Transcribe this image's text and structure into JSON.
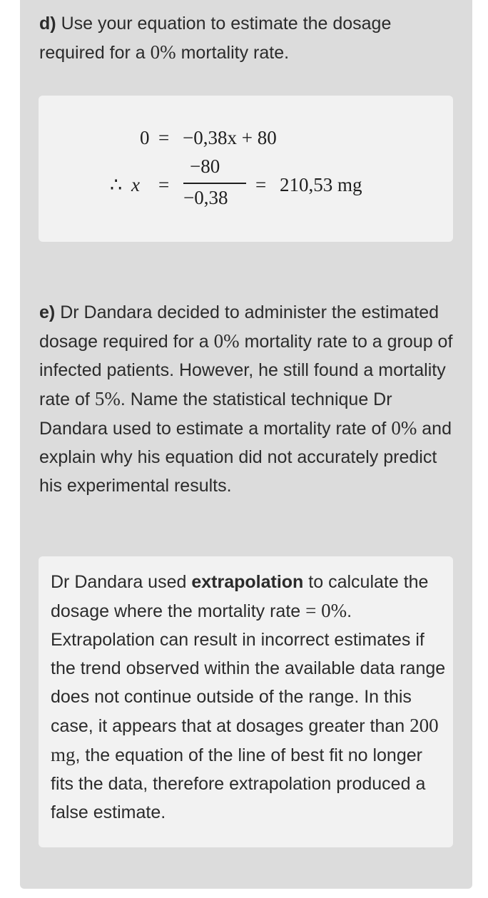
{
  "question_d": {
    "label": "d)",
    "text_before": "Use your equation to estimate the dosage required for a",
    "math": "0%",
    "text_after": "mortality rate."
  },
  "answer_d": {
    "line1": {
      "lhs": "0",
      "eq": "=",
      "rhs": "−0,38x + 80"
    },
    "line2": {
      "therefore": "∴",
      "var": "x",
      "eq1": "=",
      "numerator": "−80",
      "denominator": "−0,38",
      "eq2": "=",
      "result": "210,53 mg"
    }
  },
  "question_e": {
    "label": "e)",
    "part1": "Dr Dandara decided to administer the estimated dosage required for a",
    "math1": "0%",
    "part2": "mortality rate to a group of infected patients. However, he still found a mortality rate of",
    "math2": "5%",
    "part3": ". Name the statistical technique Dr Dandara used to estimate a mortality rate of",
    "math3": "0%",
    "part4": "and explain why his equation did not accurately predict his experimental results."
  },
  "answer_e": {
    "part1": "Dr Dandara used",
    "bold": "extrapolation",
    "part2": "to calculate the dosage where the mortality rate",
    "math1": "= 0%",
    "part3": ". Extrapolation can result in incorrect estimates if the trend observed within the available data range does not continue outside of the range. In this case, it appears that at dosages greater than",
    "math2": "200 mg",
    "part4": ", the equation of the line of best fit no longer fits the data, therefore extrapolation produced a false estimate."
  }
}
